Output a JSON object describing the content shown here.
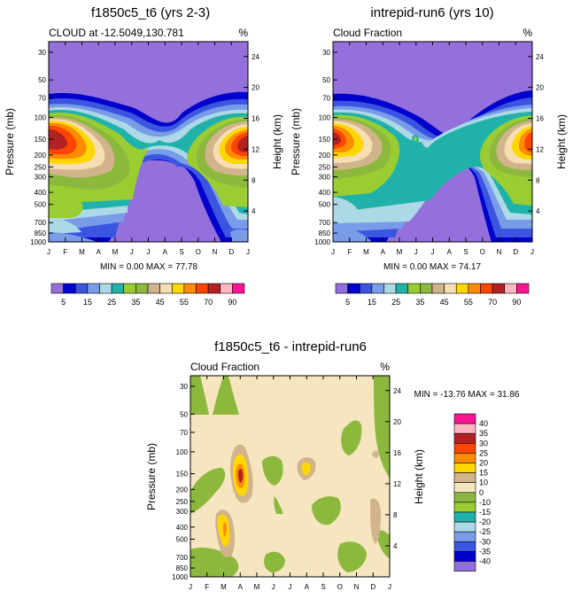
{
  "chart_data": [
    {
      "type": "heatmap",
      "id": "p1",
      "title": "f1850c5_t6 (yrs 2-3)",
      "subtitle": "CLOUD at -12.5049,130.781",
      "units": "%",
      "xlabel": "",
      "ylabel": "Pressure (mb)",
      "y2label": "Height (km)",
      "months": [
        "J",
        "F",
        "M",
        "A",
        "M",
        "J",
        "J",
        "A",
        "S",
        "O",
        "N",
        "D",
        "J"
      ],
      "pressure_ticks": [
        "30",
        "50",
        "70",
        "100",
        "150",
        "200",
        "250",
        "300",
        "400",
        "500",
        "700",
        "850",
        "1000"
      ],
      "height_ticks": [
        "24",
        "20",
        "16",
        "12",
        "8",
        "4"
      ],
      "stats": "MIN =  0.00 MAX =  77.78",
      "min": 0.0,
      "max": 77.78,
      "levels": [
        5,
        10,
        15,
        20,
        25,
        30,
        35,
        40,
        45,
        50,
        55,
        60,
        70,
        80,
        90
      ],
      "colorbar_labels": [
        "5",
        "15",
        "25",
        "35",
        "45",
        "55",
        "70",
        "90"
      ]
    },
    {
      "type": "heatmap",
      "id": "p2",
      "title": "intrepid-run6 (yrs 10)",
      "subtitle": "Cloud Fraction",
      "units": "%",
      "xlabel": "",
      "ylabel": "Pressure (mb)",
      "y2label": "Height (km)",
      "months": [
        "J",
        "F",
        "M",
        "A",
        "M",
        "J",
        "J",
        "A",
        "S",
        "O",
        "N",
        "D",
        "J"
      ],
      "pressure_ticks": [
        "30",
        "50",
        "70",
        "100",
        "150",
        "200",
        "250",
        "300",
        "400",
        "500",
        "700",
        "850",
        "1000"
      ],
      "height_ticks": [
        "24",
        "20",
        "16",
        "12",
        "8",
        "4"
      ],
      "stats": "MIN =  0.00 MAX =  74.17",
      "min": 0.0,
      "max": 74.17,
      "levels": [
        5,
        10,
        15,
        20,
        25,
        30,
        35,
        40,
        45,
        50,
        55,
        60,
        70,
        80,
        90
      ],
      "colorbar_labels": [
        "5",
        "15",
        "25",
        "35",
        "45",
        "55",
        "70",
        "90"
      ]
    },
    {
      "type": "heatmap",
      "id": "p3",
      "title": "f1850c5_t6 - intrepid-run6",
      "subtitle": "Cloud Fraction",
      "units": "%",
      "xlabel": "",
      "ylabel": "Pressure (mb)",
      "y2label": "Height (km)",
      "months": [
        "J",
        "F",
        "M",
        "A",
        "M",
        "J",
        "J",
        "A",
        "S",
        "O",
        "N",
        "D",
        "J"
      ],
      "pressure_ticks": [
        "30",
        "50",
        "70",
        "100",
        "150",
        "200",
        "250",
        "300",
        "400",
        "500",
        "700",
        "850",
        "1000"
      ],
      "height_ticks": [
        "24",
        "20",
        "16",
        "12",
        "8",
        "4"
      ],
      "stats": "MIN = -13.76 MAX =  31.86",
      "min": -13.76,
      "max": 31.86,
      "levels": [
        -40,
        -35,
        -30,
        -25,
        -20,
        -15,
        -10,
        0,
        10,
        15,
        20,
        25,
        30,
        35,
        40
      ],
      "colorbar_labels": [
        "40",
        "35",
        "30",
        "25",
        "20",
        "15",
        "10",
        "0",
        "-10",
        "-15",
        "-20",
        "-25",
        "-30",
        "-35",
        "-40"
      ]
    }
  ],
  "palettes": {
    "cloud": [
      "#9370DB",
      "#0000CD",
      "#3A55E0",
      "#7A9BE8",
      "#ADD8E6",
      "#20B2AA",
      "#9ACD32",
      "#8DB83E",
      "#D2B48C",
      "#F5DEB3",
      "#FFD700",
      "#FF8C00",
      "#FF4500",
      "#B22222",
      "#FFB6C1",
      "#FF1493"
    ],
    "diff": [
      "#FF1493",
      "#FFB6C1",
      "#B22222",
      "#FF4500",
      "#FF8C00",
      "#FFD700",
      "#D2B48C",
      "#F5E6C0",
      "#8DB83E",
      "#9ACD32",
      "#20B2AA",
      "#ADD8E6",
      "#7A9BE8",
      "#3A55E0",
      "#0000CD",
      "#9370DB"
    ]
  }
}
